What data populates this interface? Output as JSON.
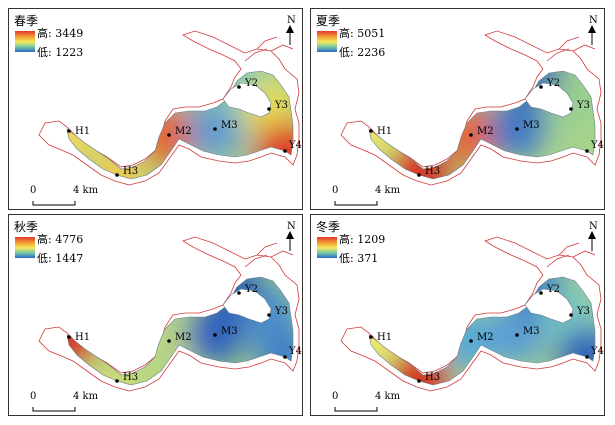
{
  "panels": [
    {
      "id": "spring",
      "title": "春季",
      "legend_high": "高: 3449",
      "legend_low": "低: 1223",
      "site_colors": {
        "H1": "#f1d75a",
        "H3": "#eccc55",
        "M2": "#e9602c",
        "M3": "#5e9ad2",
        "Y2": "#77c6bc",
        "Y3": "#e6dd57",
        "Y4": "#df3227"
      }
    },
    {
      "id": "summer",
      "title": "夏季",
      "legend_high": "高: 5051",
      "legend_low": "低: 2236",
      "site_colors": {
        "H1": "#ede36b",
        "H3": "#d92c22",
        "M2": "#e8642d",
        "M3": "#3f78c8",
        "Y2": "#2d5fb8",
        "Y3": "#96cf93",
        "Y4": "#a7d38a"
      }
    },
    {
      "id": "autumn",
      "title": "秋季",
      "legend_high": "高: 4776",
      "legend_low": "低: 1447",
      "site_colors": {
        "H1": "#d93024",
        "H3": "#c9d977",
        "M2": "#bcd684",
        "M3": "#2e60be",
        "Y2": "#2c59b3",
        "Y3": "#4b8dcd",
        "Y4": "#3f80c8"
      }
    },
    {
      "id": "winter",
      "title": "冬季",
      "legend_high": "高: 1209",
      "legend_low": "低: 371",
      "site_colors": {
        "H1": "#f2e86d",
        "H3": "#d7301f",
        "M2": "#56a9d6",
        "M3": "#5a9ed6",
        "Y2": "#3474c6",
        "Y3": "#7ac7c2",
        "Y4": "#2b5fbb"
      }
    }
  ],
  "sites": [
    "H1",
    "H3",
    "M2",
    "M3",
    "Y2",
    "Y3",
    "Y4"
  ],
  "north_label": "N",
  "scale_zero": "0",
  "scale_label": "4 km",
  "outline_color": "#d23a3a"
}
